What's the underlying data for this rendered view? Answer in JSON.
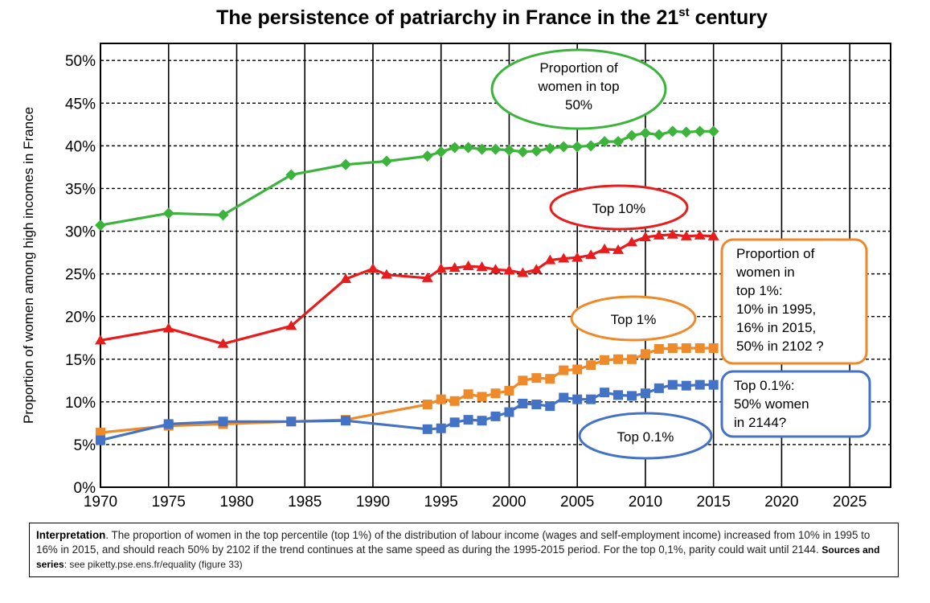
{
  "chart_data": {
    "type": "line",
    "title_main": "The persistence of patriarchy in France in the 21",
    "title_sup": "st",
    "title_end": " century",
    "ylabel": "Proportion of women among high incomes in France",
    "xlim": [
      1970,
      2028
    ],
    "ylim": [
      0,
      0.52
    ],
    "x_ticks": [
      1970,
      1975,
      1980,
      1985,
      1990,
      1995,
      2000,
      2005,
      2010,
      2015,
      2020,
      2025
    ],
    "x_tick_labels": [
      "1970",
      "1975",
      "1980",
      "1985",
      "1990",
      "1995",
      "2000",
      "2005",
      "2010",
      "2015",
      "2020",
      "2025"
    ],
    "y_ticks": [
      0,
      0.05,
      0.1,
      0.15,
      0.2,
      0.25,
      0.3,
      0.35,
      0.4,
      0.45,
      0.5
    ],
    "y_tick_labels": [
      "0%",
      "5%",
      "10%",
      "15%",
      "20%",
      "25%",
      "30%",
      "35%",
      "40%",
      "45%",
      "50%"
    ],
    "grid": true,
    "series": [
      {
        "key": "top50",
        "color": "#3cb43c",
        "marker": "diamond",
        "x": [
          1970,
          1975,
          1979,
          1984,
          1988,
          1991,
          1994,
          1995,
          1996,
          1997,
          1998,
          1999,
          2000,
          2001,
          2002,
          2003,
          2004,
          2005,
          2006,
          2007,
          2008,
          2009,
          2010,
          2011,
          2012,
          2013,
          2014,
          2015
        ],
        "y": [
          0.307,
          0.321,
          0.319,
          0.366,
          0.378,
          0.382,
          0.388,
          0.393,
          0.398,
          0.398,
          0.396,
          0.396,
          0.395,
          0.393,
          0.394,
          0.397,
          0.399,
          0.399,
          0.4,
          0.405,
          0.405,
          0.412,
          0.415,
          0.413,
          0.417,
          0.416,
          0.417,
          0.417
        ]
      },
      {
        "key": "top10",
        "color": "#e81c1c",
        "marker": "triangle",
        "x": [
          1970,
          1975,
          1979,
          1984,
          1988,
          1990,
          1991,
          1994,
          1995,
          1996,
          1997,
          1998,
          1999,
          2000,
          2001,
          2002,
          2003,
          2004,
          2005,
          2006,
          2007,
          2008,
          2009,
          2010,
          2011,
          2012,
          2013,
          2014,
          2015
        ],
        "y": [
          0.172,
          0.186,
          0.168,
          0.189,
          0.244,
          0.256,
          0.249,
          0.245,
          0.256,
          0.257,
          0.259,
          0.258,
          0.255,
          0.254,
          0.251,
          0.255,
          0.266,
          0.268,
          0.269,
          0.272,
          0.279,
          0.278,
          0.287,
          0.293,
          0.295,
          0.296,
          0.294,
          0.295,
          0.294
        ]
      },
      {
        "key": "top1",
        "color": "#ee8a2a",
        "marker": "square",
        "x": [
          1970,
          1975,
          1979,
          1984,
          1988,
          1994,
          1995,
          1996,
          1997,
          1998,
          1999,
          2000,
          2001,
          2002,
          2003,
          2004,
          2005,
          2006,
          2007,
          2008,
          2009,
          2010,
          2011,
          2012,
          2013,
          2014,
          2015
        ],
        "y": [
          0.064,
          0.072,
          0.074,
          0.077,
          0.079,
          0.097,
          0.103,
          0.101,
          0.109,
          0.106,
          0.11,
          0.113,
          0.125,
          0.128,
          0.127,
          0.137,
          0.138,
          0.143,
          0.149,
          0.15,
          0.15,
          0.156,
          0.162,
          0.163,
          0.163,
          0.163,
          0.163
        ]
      },
      {
        "key": "top01",
        "color": "#4472c4",
        "marker": "square",
        "x": [
          1970,
          1975,
          1979,
          1984,
          1988,
          1994,
          1995,
          1996,
          1997,
          1998,
          1999,
          2000,
          2001,
          2002,
          2003,
          2004,
          2005,
          2006,
          2007,
          2008,
          2009,
          2010,
          2011,
          2012,
          2013,
          2014,
          2015
        ],
        "y": [
          0.055,
          0.074,
          0.077,
          0.077,
          0.078,
          0.068,
          0.069,
          0.076,
          0.079,
          0.078,
          0.083,
          0.088,
          0.098,
          0.097,
          0.095,
          0.105,
          0.103,
          0.103,
          0.111,
          0.108,
          0.107,
          0.11,
          0.116,
          0.12,
          0.119,
          0.12,
          0.12
        ]
      }
    ],
    "annotations": [
      {
        "key": "ann-top50",
        "shape": "ellipse",
        "color": "#3cb43c",
        "lines": [
          "Proportion of",
          "women in top",
          "50%"
        ]
      },
      {
        "key": "ann-top10",
        "shape": "ellipse",
        "color": "#e81c1c",
        "lines": [
          "Top 10%"
        ]
      },
      {
        "key": "ann-top1",
        "shape": "ellipse",
        "color": "#ee8a2a",
        "lines": [
          "Top 1%"
        ]
      },
      {
        "key": "ann-top01",
        "shape": "ellipse",
        "color": "#4472c4",
        "lines": [
          "Top 0.1%"
        ]
      },
      {
        "key": "ann-box-top1",
        "shape": "box",
        "color": "#ee8a2a",
        "lines": [
          "Proportion of",
          "women in",
          "top 1%:",
          "10% in 1995,",
          "16% in 2015,",
          "50% in 2102 ?"
        ]
      },
      {
        "key": "ann-box-top01",
        "shape": "box",
        "color": "#4472c4",
        "lines": [
          "Top 0.1%:",
          "50% women",
          "in 2144?"
        ]
      }
    ]
  },
  "note": {
    "lead": "Interpretation",
    "body": ". The proportion of women in the top percentile (top 1%) of the distribution of labour income (wages and self-employment income) increased from 10% in 1995 to 16% in 2015, and should reach 50% by 2102 if the trend continues at the same speed as during the 1995-2015 period. For the top 0,1%, parity could wait until 2144.  ",
    "sources_label": "Sources and series",
    "sources_text": ": see piketty.pse.ens.fr/equality (figure 33)"
  }
}
